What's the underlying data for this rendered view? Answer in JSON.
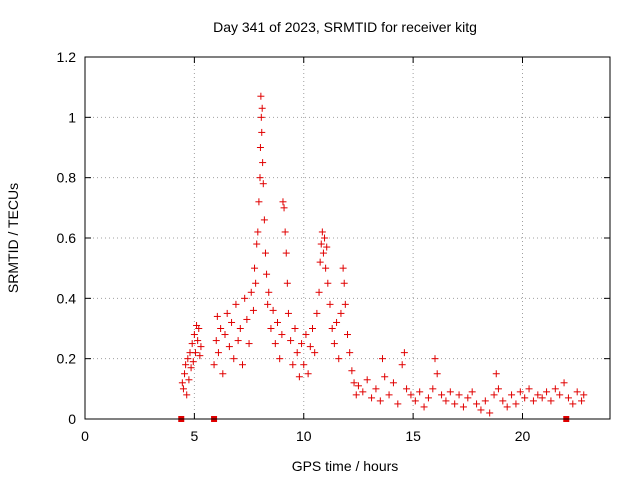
{
  "chart_data": {
    "type": "scatter",
    "title": "Day 341 of 2023, SRMTID for receiver kitg",
    "xlabel": "GPS time / hours",
    "ylabel": "SRMTID / TECUs",
    "xlim": [
      0,
      24
    ],
    "ylim": [
      0,
      1.2
    ],
    "grid": true,
    "marker": "plus",
    "color": "#e00000",
    "x_ticks": [
      0,
      5,
      10,
      15,
      20
    ],
    "x_tick_labels": [
      "0",
      "5",
      "10",
      "15",
      "20"
    ],
    "y_ticks": [
      0,
      0.2,
      0.4,
      0.6,
      0.8,
      1.0,
      1.2
    ],
    "y_tick_labels": [
      "0",
      "0.2",
      "0.4",
      "0.6",
      "0.8",
      "1",
      "1.2"
    ],
    "zero_markers": [
      4.4,
      5.9,
      22.0
    ],
    "series": [
      {
        "name": "SRMTID",
        "points": [
          [
            4.45,
            0.12
          ],
          [
            4.5,
            0.1
          ],
          [
            4.55,
            0.15
          ],
          [
            4.6,
            0.18
          ],
          [
            4.65,
            0.08
          ],
          [
            4.7,
            0.2
          ],
          [
            4.75,
            0.13
          ],
          [
            4.8,
            0.22
          ],
          [
            4.85,
            0.17
          ],
          [
            4.9,
            0.25
          ],
          [
            4.95,
            0.19
          ],
          [
            5.0,
            0.28
          ],
          [
            5.05,
            0.22
          ],
          [
            5.1,
            0.31
          ],
          [
            5.15,
            0.26
          ],
          [
            5.2,
            0.3
          ],
          [
            5.25,
            0.21
          ],
          [
            5.3,
            0.24
          ],
          [
            5.9,
            0.18
          ],
          [
            6.0,
            0.26
          ],
          [
            6.05,
            0.34
          ],
          [
            6.1,
            0.22
          ],
          [
            6.2,
            0.3
          ],
          [
            6.3,
            0.15
          ],
          [
            6.4,
            0.28
          ],
          [
            6.5,
            0.35
          ],
          [
            6.6,
            0.24
          ],
          [
            6.7,
            0.32
          ],
          [
            6.8,
            0.2
          ],
          [
            6.9,
            0.38
          ],
          [
            7.0,
            0.26
          ],
          [
            7.1,
            0.3
          ],
          [
            7.2,
            0.18
          ],
          [
            7.3,
            0.4
          ],
          [
            7.4,
            0.33
          ],
          [
            7.5,
            0.25
          ],
          [
            7.6,
            0.42
          ],
          [
            7.7,
            0.36
          ],
          [
            7.75,
            0.5
          ],
          [
            7.8,
            0.45
          ],
          [
            7.85,
            0.58
          ],
          [
            7.9,
            0.62
          ],
          [
            7.95,
            0.72
          ],
          [
            8.0,
            0.8
          ],
          [
            8.02,
            0.9
          ],
          [
            8.04,
            1.07
          ],
          [
            8.06,
            1.0
          ],
          [
            8.08,
            0.95
          ],
          [
            8.1,
            1.03
          ],
          [
            8.12,
            0.85
          ],
          [
            8.15,
            0.78
          ],
          [
            8.2,
            0.66
          ],
          [
            8.25,
            0.55
          ],
          [
            8.3,
            0.48
          ],
          [
            8.35,
            0.38
          ],
          [
            8.4,
            0.42
          ],
          [
            8.5,
            0.3
          ],
          [
            8.6,
            0.36
          ],
          [
            8.7,
            0.25
          ],
          [
            8.8,
            0.32
          ],
          [
            8.9,
            0.2
          ],
          [
            9.0,
            0.28
          ],
          [
            9.05,
            0.72
          ],
          [
            9.1,
            0.7
          ],
          [
            9.15,
            0.62
          ],
          [
            9.2,
            0.55
          ],
          [
            9.25,
            0.45
          ],
          [
            9.3,
            0.35
          ],
          [
            9.4,
            0.26
          ],
          [
            9.5,
            0.18
          ],
          [
            9.6,
            0.3
          ],
          [
            9.7,
            0.22
          ],
          [
            9.8,
            0.14
          ],
          [
            9.9,
            0.25
          ],
          [
            10.0,
            0.18
          ],
          [
            10.1,
            0.28
          ],
          [
            10.2,
            0.15
          ],
          [
            10.3,
            0.24
          ],
          [
            10.4,
            0.3
          ],
          [
            10.5,
            0.22
          ],
          [
            10.6,
            0.35
          ],
          [
            10.7,
            0.42
          ],
          [
            10.75,
            0.52
          ],
          [
            10.8,
            0.58
          ],
          [
            10.85,
            0.62
          ],
          [
            10.9,
            0.55
          ],
          [
            10.95,
            0.6
          ],
          [
            11.0,
            0.5
          ],
          [
            11.05,
            0.57
          ],
          [
            11.1,
            0.45
          ],
          [
            11.2,
            0.38
          ],
          [
            11.3,
            0.3
          ],
          [
            11.4,
            0.25
          ],
          [
            11.5,
            0.32
          ],
          [
            11.6,
            0.2
          ],
          [
            11.7,
            0.35
          ],
          [
            11.8,
            0.5
          ],
          [
            11.85,
            0.45
          ],
          [
            11.9,
            0.38
          ],
          [
            12.0,
            0.28
          ],
          [
            12.1,
            0.22
          ],
          [
            12.2,
            0.16
          ],
          [
            12.3,
            0.12
          ],
          [
            12.4,
            0.08
          ],
          [
            12.5,
            0.11
          ],
          [
            12.7,
            0.09
          ],
          [
            12.9,
            0.13
          ],
          [
            13.1,
            0.07
          ],
          [
            13.3,
            0.1
          ],
          [
            13.5,
            0.06
          ],
          [
            13.6,
            0.2
          ],
          [
            13.7,
            0.14
          ],
          [
            13.9,
            0.08
          ],
          [
            14.1,
            0.12
          ],
          [
            14.3,
            0.05
          ],
          [
            14.5,
            0.18
          ],
          [
            14.6,
            0.22
          ],
          [
            14.7,
            0.1
          ],
          [
            14.9,
            0.08
          ],
          [
            15.1,
            0.06
          ],
          [
            15.3,
            0.09
          ],
          [
            15.5,
            0.04
          ],
          [
            15.7,
            0.07
          ],
          [
            15.9,
            0.1
          ],
          [
            16.0,
            0.2
          ],
          [
            16.1,
            0.15
          ],
          [
            16.3,
            0.08
          ],
          [
            16.5,
            0.06
          ],
          [
            16.7,
            0.09
          ],
          [
            16.9,
            0.05
          ],
          [
            17.1,
            0.08
          ],
          [
            17.3,
            0.04
          ],
          [
            17.5,
            0.07
          ],
          [
            17.7,
            0.09
          ],
          [
            17.9,
            0.05
          ],
          [
            18.1,
            0.03
          ],
          [
            18.3,
            0.06
          ],
          [
            18.5,
            0.02
          ],
          [
            18.7,
            0.08
          ],
          [
            18.8,
            0.15
          ],
          [
            18.9,
            0.1
          ],
          [
            19.1,
            0.06
          ],
          [
            19.3,
            0.04
          ],
          [
            19.5,
            0.08
          ],
          [
            19.7,
            0.05
          ],
          [
            19.9,
            0.09
          ],
          [
            20.1,
            0.07
          ],
          [
            20.3,
            0.1
          ],
          [
            20.5,
            0.06
          ],
          [
            20.7,
            0.08
          ],
          [
            20.9,
            0.07
          ],
          [
            21.1,
            0.09
          ],
          [
            21.3,
            0.06
          ],
          [
            21.5,
            0.1
          ],
          [
            21.7,
            0.08
          ],
          [
            21.9,
            0.12
          ],
          [
            22.1,
            0.07
          ],
          [
            22.3,
            0.05
          ],
          [
            22.5,
            0.09
          ],
          [
            22.7,
            0.06
          ],
          [
            22.8,
            0.08
          ]
        ]
      }
    ]
  }
}
